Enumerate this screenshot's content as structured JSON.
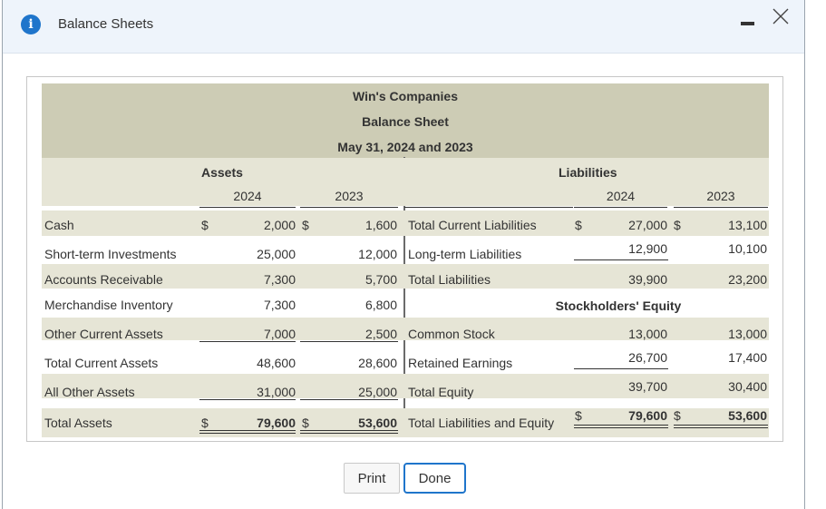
{
  "dialog": {
    "title": "Balance Sheets",
    "info_icon": "info-icon",
    "minimize_icon": "minimize-icon",
    "close_icon": "close-icon"
  },
  "sheet": {
    "company": "Win's Companies",
    "statement": "Balance Sheet",
    "date": "May 31, 2024 and 2023",
    "assets_label": "Assets",
    "liabilities_label": "Liabilities",
    "equity_label": "Stockholders' Equity",
    "years": [
      "2024",
      "2023"
    ],
    "dollar": "$",
    "assets": [
      {
        "label": "Cash",
        "y2024": "2,000",
        "y2023": "1,600"
      },
      {
        "label": "Short-term Investments",
        "y2024": "25,000",
        "y2023": "12,000"
      },
      {
        "label": "Accounts Receivable",
        "y2024": "7,300",
        "y2023": "5,700"
      },
      {
        "label": "Merchandise Inventory",
        "y2024": "7,300",
        "y2023": "6,800"
      },
      {
        "label": "Other Current Assets",
        "y2024": "7,000",
        "y2023": "2,500"
      },
      {
        "label": "Total Current Assets",
        "y2024": "48,600",
        "y2023": "28,600"
      },
      {
        "label": "All Other Assets",
        "y2024": "31,000",
        "y2023": "25,000"
      },
      {
        "label": "Total Assets",
        "y2024": "79,600",
        "y2023": "53,600"
      }
    ],
    "liabilities": [
      {
        "label": "Total Current Liabilities",
        "y2024": "27,000",
        "y2023": "13,100"
      },
      {
        "label": "Long-term Liabilities",
        "y2024": "12,900",
        "y2023": "10,100"
      },
      {
        "label": "Total Liabilities",
        "y2024": "39,900",
        "y2023": "23,200"
      }
    ],
    "equity": [
      {
        "label": "Common Stock",
        "y2024": "13,000",
        "y2023": "13,000"
      },
      {
        "label": "Retained Earnings",
        "y2024": "26,700",
        "y2023": "17,400"
      },
      {
        "label": "Total Equity",
        "y2024": "39,700",
        "y2023": "30,400"
      },
      {
        "label": "Total Liabilities and Equity",
        "y2024": "79,600",
        "y2023": "53,600"
      }
    ]
  },
  "buttons": {
    "print_label": "Print",
    "done_label": "Done"
  },
  "colors": {
    "header_band": "#cdccb5",
    "row_band": "#e6e5d6",
    "accent": "#1f75cb"
  }
}
